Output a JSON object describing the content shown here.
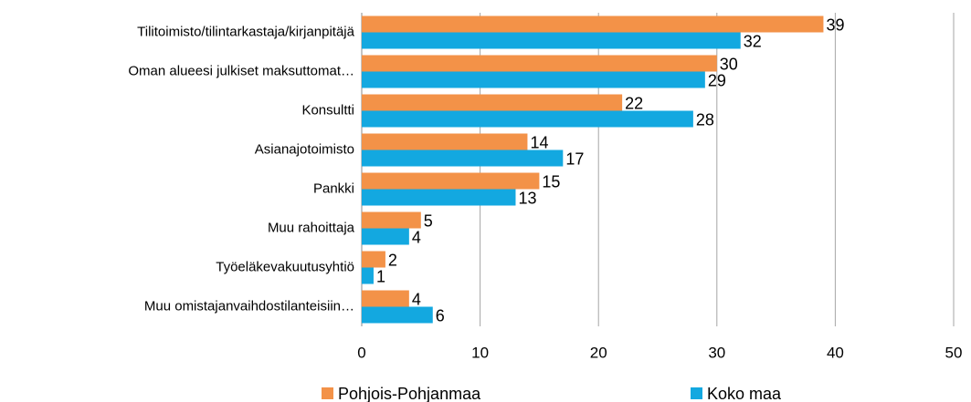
{
  "chart_data": {
    "type": "bar",
    "orientation": "horizontal",
    "categories": [
      "Tilitoimisto/tilintarkastaja/kirjanpitäjä",
      "Oman alueesi julkiset maksuttomat…",
      "Konsultti",
      "Asianajotoimisto",
      "Pankki",
      "Muu rahoittaja",
      "Työeläkevakuutusyhtiö",
      "Muu omistajanvaihdostilanteisiin…"
    ],
    "series": [
      {
        "name": "Pohjois-Pohjanmaa",
        "color": "#f39248",
        "values": [
          39,
          30,
          22,
          14,
          15,
          5,
          2,
          4
        ]
      },
      {
        "name": "Koko maa",
        "color": "#13a8e0",
        "values": [
          32,
          29,
          28,
          17,
          13,
          4,
          1,
          6
        ]
      }
    ],
    "xlim": [
      0,
      50
    ],
    "xticks": [
      0,
      10,
      20,
      30,
      40,
      50
    ],
    "grid": true,
    "legend": "bottom"
  }
}
